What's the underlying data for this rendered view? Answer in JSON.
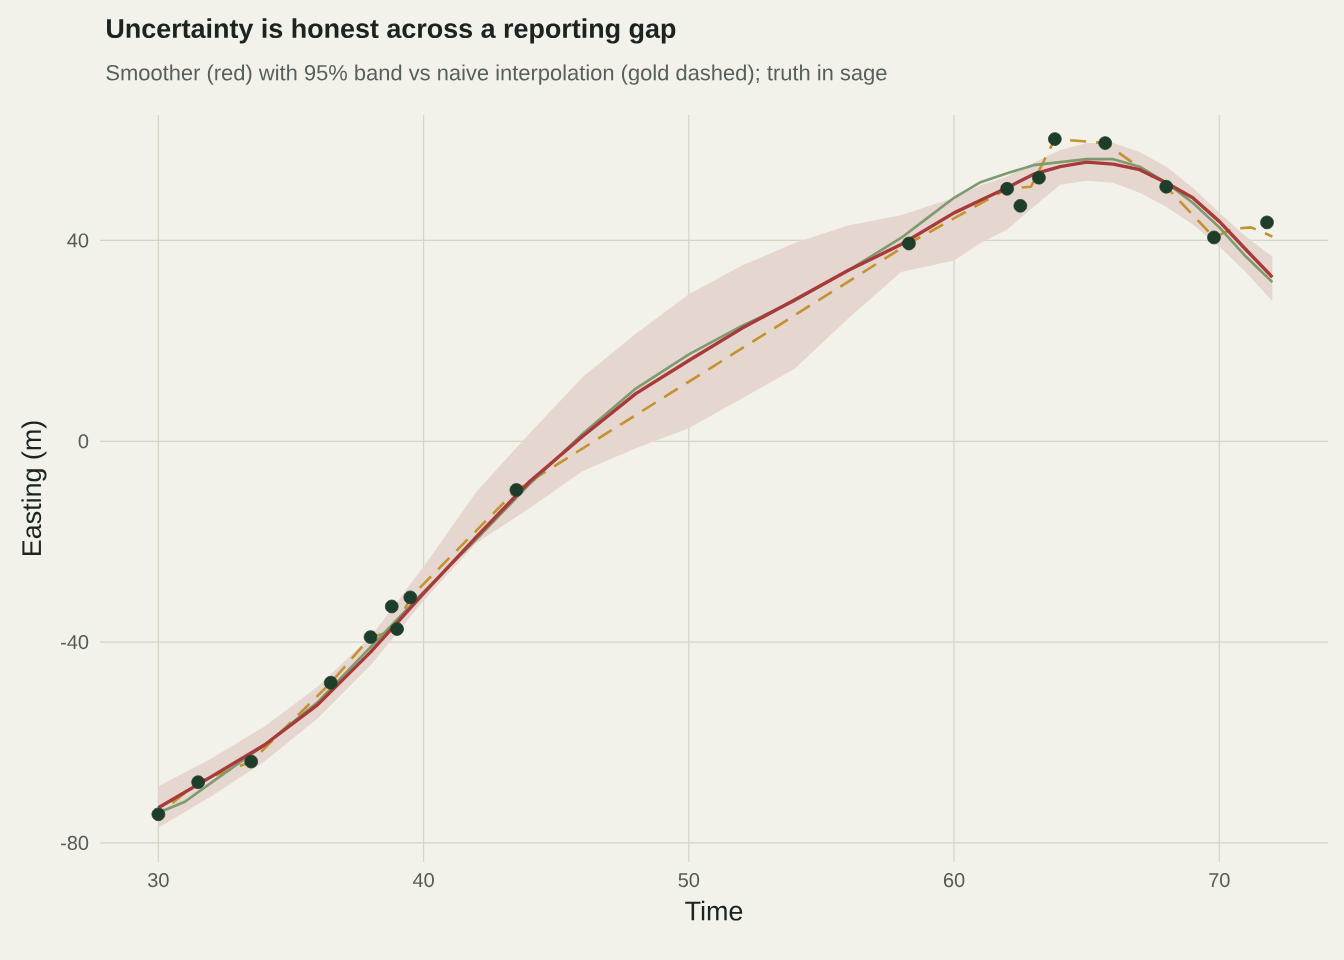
{
  "chart_data": {
    "type": "line",
    "title": "Uncertainty is honest across a reporting gap",
    "subtitle": "Smoother (red) with 95% band vs naive interpolation (gold dashed); truth in sage",
    "xlabel": "Time",
    "ylabel": "Easting (m)",
    "xlim": [
      27.8,
      74.1
    ],
    "ylim": [
      -83.8,
      65
    ],
    "xticks": [
      30,
      40,
      50,
      60,
      70
    ],
    "yticks": [
      -80,
      -40,
      0,
      40
    ],
    "grid": true,
    "series": [
      {
        "type": "line",
        "color": "#c4922e",
        "line_style": "dashed",
        "marker": "none",
        "x": [
          30,
          31.5,
          33.5,
          36.5,
          38.0,
          38.9,
          39.5,
          43.5,
          58.3,
          62.0,
          62.9,
          63.8,
          65.7,
          68.0,
          69.8,
          70.5,
          71.2,
          72
        ],
        "values": [
          -74.3,
          -67.9,
          -63.8,
          -48.1,
          -39.0,
          -37.8,
          -31.1,
          -9.7,
          39.4,
          50.3,
          50.7,
          60.2,
          59.4,
          50.7,
          40.6,
          42.3,
          42.6,
          40.8
        ]
      },
      {
        "type": "line",
        "color": "#7f9a6e",
        "line_style": "solid",
        "marker": "none",
        "x": [
          30,
          31,
          32,
          34,
          36,
          38,
          40,
          42,
          44,
          46,
          48,
          50,
          52,
          54,
          56,
          58,
          59,
          60,
          61,
          62,
          63,
          64,
          65,
          66,
          67,
          68,
          69,
          70,
          71,
          72
        ],
        "values": [
          -74,
          -71.8,
          -68,
          -60.5,
          -52,
          -41,
          -30,
          -19.5,
          -8.5,
          1.5,
          10.5,
          17.3,
          23,
          28,
          34,
          40.5,
          44.5,
          48.5,
          51.6,
          53.4,
          55,
          55.6,
          56.2,
          56.2,
          54.7,
          51.5,
          47.5,
          42.6,
          36.8,
          31.7
        ]
      },
      {
        "type": "line",
        "color": "#a83a3a",
        "line_style": "solid",
        "marker": "none",
        "x": [
          30,
          32,
          34,
          36,
          38,
          40,
          42,
          44,
          46,
          48,
          50,
          52,
          54,
          56,
          58,
          60,
          61,
          62,
          63,
          64,
          65,
          66,
          67,
          68,
          69,
          70,
          71,
          72
        ],
        "values": [
          -73,
          -66.8,
          -60.5,
          -52.5,
          -42,
          -30.3,
          -19,
          -8,
          1,
          9.5,
          16.1,
          22.5,
          28.2,
          34,
          39.2,
          45.5,
          48,
          50.5,
          53.2,
          54.7,
          55.6,
          55.2,
          54.1,
          51.5,
          48.5,
          43.8,
          38.2,
          32.7
        ],
        "lower": [
          -77,
          -70.7,
          -63.8,
          -55.2,
          -44.6,
          -31.7,
          -20.2,
          -13.3,
          -5.9,
          -1.4,
          2.6,
          8.5,
          14.5,
          24.4,
          33.7,
          36,
          39.5,
          42.2,
          46.7,
          51.1,
          51.9,
          51.5,
          49.5,
          46.7,
          43.2,
          38.8,
          33.7,
          27.9
        ],
        "upper": [
          -68.7,
          -63.2,
          -56.8,
          -48.9,
          -39,
          -25,
          -10,
          1.6,
          12.8,
          21.4,
          29.3,
          35,
          39.5,
          43,
          45,
          48.5,
          51,
          52.7,
          55.5,
          58,
          59.4,
          59.4,
          57.6,
          54.7,
          50.5,
          45.5,
          40.8,
          36.8
        ]
      },
      {
        "type": "scatter",
        "color": "#1e3d2a",
        "marker": "circle",
        "x": [
          30,
          31.5,
          33.5,
          36.5,
          38.0,
          38.8,
          39.0,
          39.5,
          43.5,
          58.3,
          62.0,
          62.5,
          63.2,
          63.8,
          65.7,
          68.0,
          69.8,
          71.8
        ],
        "values": [
          -74.3,
          -67.9,
          -63.8,
          -48.1,
          -39.0,
          -32.9,
          -37.4,
          -31.1,
          -9.7,
          39.4,
          50.3,
          46.9,
          52.5,
          60.2,
          59.4,
          50.7,
          40.6,
          43.6
        ]
      }
    ]
  }
}
